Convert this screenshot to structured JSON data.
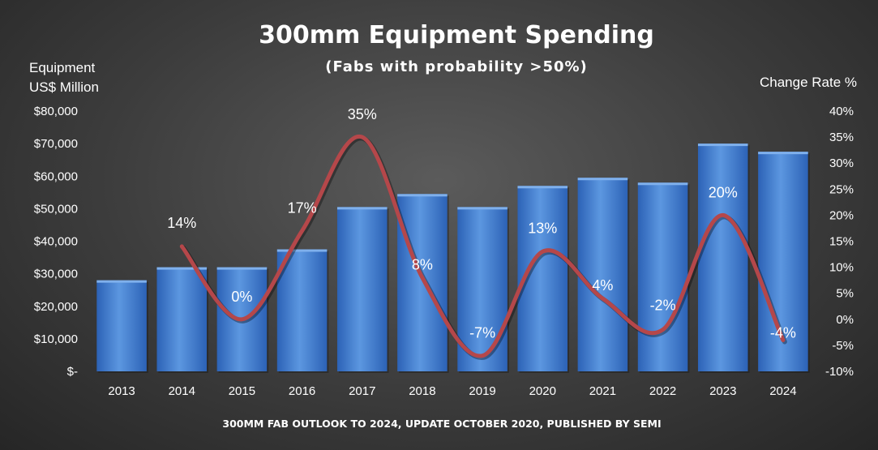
{
  "colors": {
    "bar": "#4a86d4",
    "bar_dark": "#2457a8",
    "bar_light": "#7fb0ec",
    "line": "#b5474a"
  },
  "chart_data": {
    "type": "bar",
    "title": "300mm Equipment Spending",
    "subtitle": "(Fabs with probability >50%)",
    "ylabel_left_line1": "Equipment",
    "ylabel_left_line2": "US$ Million",
    "ylabel_right": "Change Rate %",
    "source": "300MM FAB OUTLOOK TO 2024, UPDATE OCTOBER 2020, PUBLISHED BY SEMI",
    "categories": [
      "2013",
      "2014",
      "2015",
      "2016",
      "2017",
      "2018",
      "2019",
      "2020",
      "2021",
      "2022",
      "2023",
      "2024"
    ],
    "series": [
      {
        "type": "bar",
        "axis": "left",
        "values": [
          28000,
          32000,
          32000,
          37500,
          50500,
          54500,
          50500,
          57000,
          59500,
          58000,
          70000,
          67500
        ]
      },
      {
        "type": "line",
        "axis": "right",
        "values": [
          null,
          14,
          0,
          17,
          35,
          8,
          -7,
          13,
          4,
          -2,
          20,
          -4
        ],
        "labels": [
          "",
          "14%",
          "0%",
          "17%",
          "35%",
          "8%",
          "-7%",
          "13%",
          "4%",
          "-2%",
          "20%",
          "-4%"
        ]
      }
    ],
    "ylim_left": [
      0,
      80000
    ],
    "yticks_left": [
      "$-",
      "$10,000",
      "$20,000",
      "$30,000",
      "$40,000",
      "$50,000",
      "$60,000",
      "$70,000",
      "$80,000"
    ],
    "ylim_right": [
      -10,
      40
    ],
    "yticks_right": [
      "-10%",
      "-5%",
      "0%",
      "5%",
      "10%",
      "15%",
      "20%",
      "25%",
      "30%",
      "35%",
      "40%"
    ],
    "grid": false,
    "legend": "none"
  }
}
